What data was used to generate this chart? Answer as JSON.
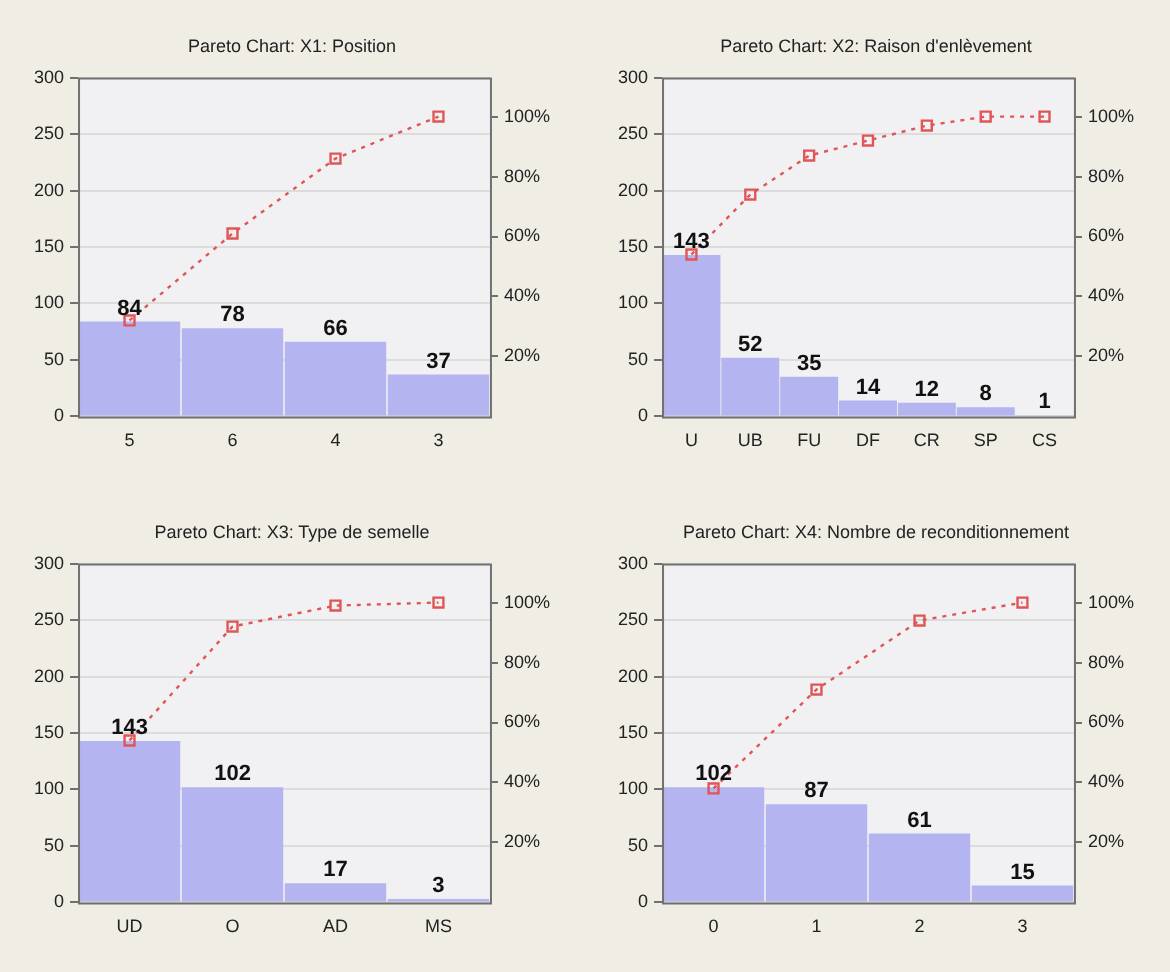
{
  "chart_data": [
    {
      "type": "bar",
      "title": "Pareto Chart: X1: Position",
      "categories": [
        "5",
        "6",
        "4",
        "3"
      ],
      "series": [
        {
          "color": "#b4b4f0",
          "values": [
            84,
            78,
            66,
            37
          ],
          "value_labels": [
            "84",
            "78",
            "66",
            "37"
          ]
        },
        {
          "type": "line",
          "axis": "y2",
          "color": "#e05555",
          "values": [
            32,
            61,
            86,
            100
          ]
        }
      ],
      "ylim": [
        0,
        300
      ],
      "yticks": [
        0,
        50,
        100,
        150,
        200,
        250,
        300
      ],
      "y2lim": [
        0,
        113
      ],
      "y2ticks": [
        {
          "value": 20,
          "label": "20%"
        },
        {
          "value": 40,
          "label": "40%"
        },
        {
          "value": 60,
          "label": "60%"
        },
        {
          "value": 80,
          "label": "80%"
        },
        {
          "value": 100,
          "label": "100%"
        }
      ],
      "grid": "y",
      "marker": "square",
      "line_style": "dotted"
    },
    {
      "type": "bar",
      "title": "Pareto Chart: X2: Raison d'enlèvement",
      "categories": [
        "U",
        "UB",
        "FU",
        "DF",
        "CR",
        "SP",
        "CS"
      ],
      "series": [
        {
          "color": "#b4b4f0",
          "values": [
            143,
            52,
            35,
            14,
            12,
            8,
            1
          ],
          "value_labels": [
            "143",
            "52",
            "35",
            "14",
            "12",
            "8",
            "1"
          ]
        },
        {
          "type": "line",
          "axis": "y2",
          "color": "#e05555",
          "values": [
            54,
            74,
            87,
            92,
            97,
            100,
            100
          ]
        }
      ],
      "ylim": [
        0,
        300
      ],
      "yticks": [
        0,
        50,
        100,
        150,
        200,
        250,
        300
      ],
      "y2lim": [
        0,
        113
      ],
      "y2ticks": [
        {
          "value": 20,
          "label": "20%"
        },
        {
          "value": 40,
          "label": "40%"
        },
        {
          "value": 60,
          "label": "60%"
        },
        {
          "value": 80,
          "label": "80%"
        },
        {
          "value": 100,
          "label": "100%"
        }
      ],
      "grid": "y",
      "marker": "square",
      "line_style": "dotted"
    },
    {
      "type": "bar",
      "title": "Pareto Chart: X3: Type de semelle",
      "categories": [
        "UD",
        "O",
        "AD",
        "MS"
      ],
      "series": [
        {
          "color": "#b4b4f0",
          "values": [
            143,
            102,
            17,
            3
          ],
          "value_labels": [
            "143",
            "102",
            "17",
            "3"
          ]
        },
        {
          "type": "line",
          "axis": "y2",
          "color": "#e05555",
          "values": [
            54,
            92,
            99,
            100
          ]
        }
      ],
      "ylim": [
        0,
        300
      ],
      "yticks": [
        0,
        50,
        100,
        150,
        200,
        250,
        300
      ],
      "y2lim": [
        0,
        113
      ],
      "y2ticks": [
        {
          "value": 20,
          "label": "20%"
        },
        {
          "value": 40,
          "label": "40%"
        },
        {
          "value": 60,
          "label": "60%"
        },
        {
          "value": 80,
          "label": "80%"
        },
        {
          "value": 100,
          "label": "100%"
        }
      ],
      "grid": "y",
      "marker": "square",
      "line_style": "dotted"
    },
    {
      "type": "bar",
      "title": "Pareto Chart: X4: Nombre de reconditionnement",
      "categories": [
        "0",
        "1",
        "2",
        "3"
      ],
      "series": [
        {
          "color": "#b4b4f0",
          "values": [
            102,
            87,
            61,
            15
          ],
          "value_labels": [
            "102",
            "87",
            "61",
            "15"
          ]
        },
        {
          "type": "line",
          "axis": "y2",
          "color": "#e05555",
          "values": [
            38,
            71,
            94,
            100
          ]
        }
      ],
      "ylim": [
        0,
        300
      ],
      "yticks": [
        0,
        50,
        100,
        150,
        200,
        250,
        300
      ],
      "y2lim": [
        0,
        113
      ],
      "y2ticks": [
        {
          "value": 20,
          "label": "20%"
        },
        {
          "value": 40,
          "label": "40%"
        },
        {
          "value": 60,
          "label": "60%"
        },
        {
          "value": 80,
          "label": "80%"
        },
        {
          "value": 100,
          "label": "100%"
        }
      ],
      "grid": "y",
      "marker": "square",
      "line_style": "dotted"
    }
  ]
}
